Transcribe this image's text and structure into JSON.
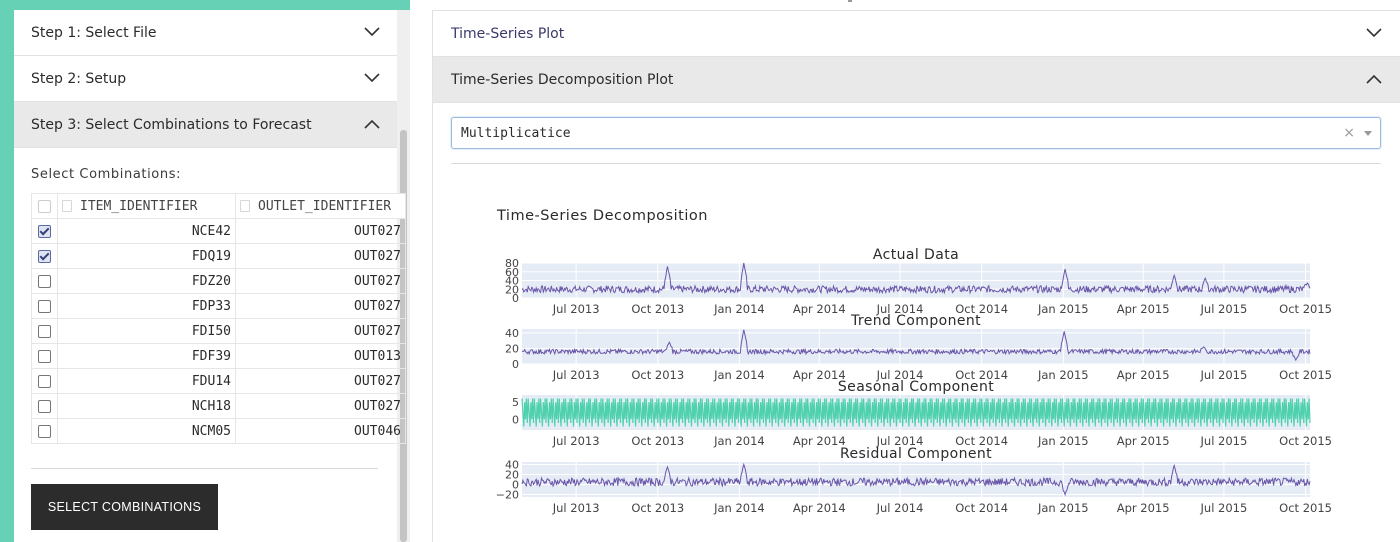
{
  "left": {
    "steps": [
      {
        "label": "Step 1: Select File",
        "expanded": false
      },
      {
        "label": "Step 2: Setup",
        "expanded": false
      },
      {
        "label": "Step 3: Select Combinations to Forecast",
        "expanded": true
      }
    ],
    "select_label": "Select Combinations:",
    "table": {
      "headers": [
        "ITEM_IDENTIFIER",
        "OUTLET_IDENTIFIER"
      ],
      "rows": [
        {
          "checked": true,
          "item": "NCE42",
          "outlet": "OUT027"
        },
        {
          "checked": true,
          "item": "FDQ19",
          "outlet": "OUT027"
        },
        {
          "checked": false,
          "item": "FDZ20",
          "outlet": "OUT027"
        },
        {
          "checked": false,
          "item": "FDP33",
          "outlet": "OUT027"
        },
        {
          "checked": false,
          "item": "FDI50",
          "outlet": "OUT027"
        },
        {
          "checked": false,
          "item": "FDF39",
          "outlet": "OUT013"
        },
        {
          "checked": false,
          "item": "FDU14",
          "outlet": "OUT027"
        },
        {
          "checked": false,
          "item": "NCH18",
          "outlet": "OUT027"
        },
        {
          "checked": false,
          "item": "NCM05",
          "outlet": "OUT046"
        }
      ]
    },
    "button_label": "SELECT COMBINATIONS"
  },
  "right": {
    "sections": [
      {
        "label": "Time-Series Plot",
        "expanded": false
      },
      {
        "label": "Time-Series Decomposition Plot",
        "expanded": true
      }
    ],
    "dropdown": {
      "value": "Multiplicatice",
      "clear_glyph": "×"
    }
  },
  "colors": {
    "accent": "#66d1b4",
    "series": "#6a56a8",
    "seasonal": "#4fd1ae",
    "plot_bg": "#e5ecf6"
  },
  "chart_data": {
    "type": "line",
    "title": "Time-Series Decomposition",
    "x_ticks": [
      "Jul 2013",
      "Oct 2013",
      "Jan 2014",
      "Apr 2014",
      "Jul 2014",
      "Oct 2014",
      "Jan 2015",
      "Apr 2015",
      "Jul 2015",
      "Oct 2015"
    ],
    "x_range": [
      "2013-05-01",
      "2015-10-06"
    ],
    "subplots": [
      {
        "name": "Actual Data",
        "y_ticks": [
          "80",
          "60",
          "40",
          "20",
          "0"
        ],
        "ylim": [
          0,
          80
        ],
        "baseline": 20,
        "noise": 8,
        "spikes": [
          [
            "2013-10-12",
            72
          ],
          [
            "2014-01-06",
            80
          ],
          [
            "2015-01-03",
            66
          ],
          [
            "2015-05-06",
            52
          ],
          [
            "2015-06-10",
            45
          ],
          [
            "2015-10-03",
            34
          ]
        ]
      },
      {
        "name": "Trend Component",
        "y_ticks": [
          "40",
          "20",
          "0"
        ],
        "ylim": [
          0,
          45
        ],
        "baseline": 16,
        "noise": 3,
        "spikes": [
          [
            "2013-10-14",
            28
          ],
          [
            "2014-01-06",
            44
          ],
          [
            "2015-01-02",
            42
          ],
          [
            "2015-06-08",
            22
          ],
          [
            "2015-09-20",
            5
          ]
        ]
      },
      {
        "name": "Seasonal Component",
        "y_ticks": [
          "5",
          "0"
        ],
        "ylim": [
          -3,
          7
        ],
        "baseline": 2,
        "noise": 0,
        "spikes": []
      },
      {
        "name": "Residual Component",
        "y_ticks": [
          "40",
          "20",
          "0",
          "−20"
        ],
        "ylim": [
          -25,
          45
        ],
        "baseline": 5,
        "noise": 8,
        "spikes": [
          [
            "2013-10-12",
            35
          ],
          [
            "2014-01-06",
            40
          ],
          [
            "2015-01-03",
            -20
          ],
          [
            "2015-05-06",
            38
          ]
        ]
      }
    ]
  }
}
